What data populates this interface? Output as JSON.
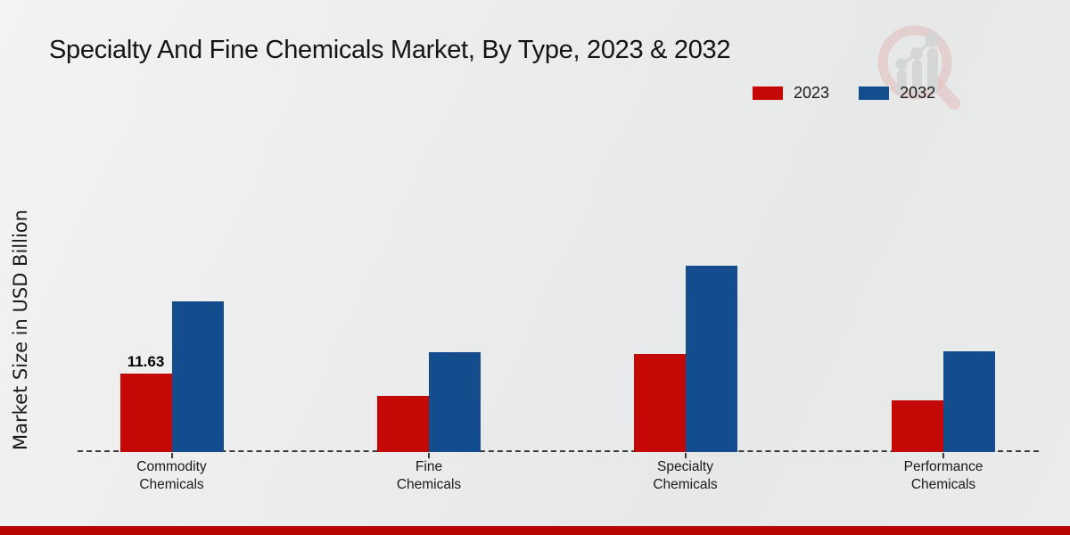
{
  "page": {
    "title": "Specialty And Fine Chemicals Market, By Type, 2023 & 2032",
    "ylabel": "Market Size in USD Billion"
  },
  "legend": {
    "items": [
      {
        "label": "2023",
        "color": "#c40805"
      },
      {
        "label": "2032",
        "color": "#134d8d"
      }
    ]
  },
  "colors": {
    "series_2023": "#c40805",
    "series_2032": "#134d8d",
    "footer_bar": "#b90504",
    "axis_line": "#3c3c3c",
    "watermark_ring": "#dfa3a3",
    "watermark_bars": "#c6c7c8"
  },
  "watermark": {
    "icon": "analytics-magnifier-logo"
  },
  "chart_data": {
    "type": "bar",
    "title": "Specialty And Fine Chemicals Market, By Type, 2023 & 2032",
    "ylabel": "Market Size in USD Billion",
    "xlabel": "",
    "categories": [
      "Commodity Chemicals",
      "Fine Chemicals",
      "Specialty Chemicals",
      "Performance Chemicals"
    ],
    "series": [
      {
        "name": "2023",
        "color": "#c40805",
        "values": [
          11.63,
          8.4,
          14.6,
          7.7
        ]
      },
      {
        "name": "2032",
        "color": "#134d8d",
        "values": [
          22.4,
          14.8,
          27.7,
          15.0
        ]
      }
    ],
    "data_labels": [
      {
        "series": 0,
        "category": 0,
        "text": "11.63"
      }
    ],
    "ylim": [
      0,
      30
    ],
    "grid": false,
    "y_ticks_visible": false,
    "legend_position": "top-right",
    "baseline_style": "dashed"
  }
}
